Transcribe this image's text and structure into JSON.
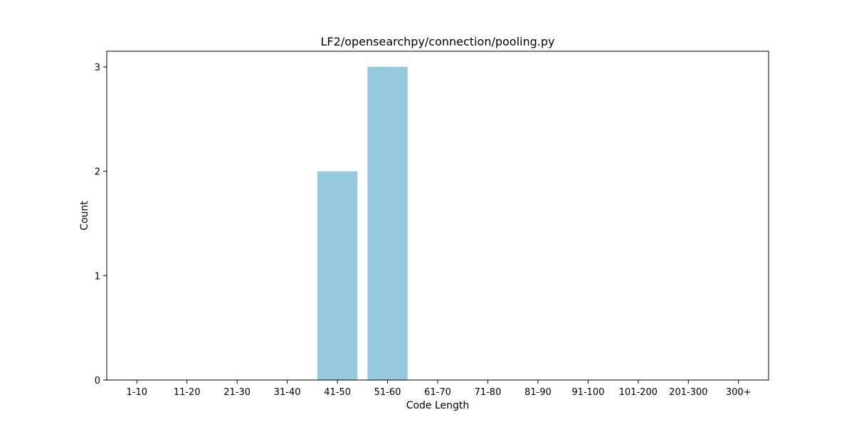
{
  "chart_data": {
    "type": "bar",
    "title": "LF2/opensearchpy/connection/pooling.py",
    "xlabel": "Code Length",
    "ylabel": "Count",
    "categories": [
      "1-10",
      "11-20",
      "21-30",
      "31-40",
      "41-50",
      "51-60",
      "61-70",
      "71-80",
      "81-90",
      "91-100",
      "101-200",
      "201-300",
      "300+"
    ],
    "values": [
      0,
      0,
      0,
      0,
      2,
      3,
      0,
      0,
      0,
      0,
      0,
      0,
      0
    ],
    "ylim": [
      0,
      3.15
    ],
    "yticks": [
      0,
      1,
      2,
      3
    ],
    "bar_color": "#96c9dd",
    "grid": false,
    "legend": false
  }
}
